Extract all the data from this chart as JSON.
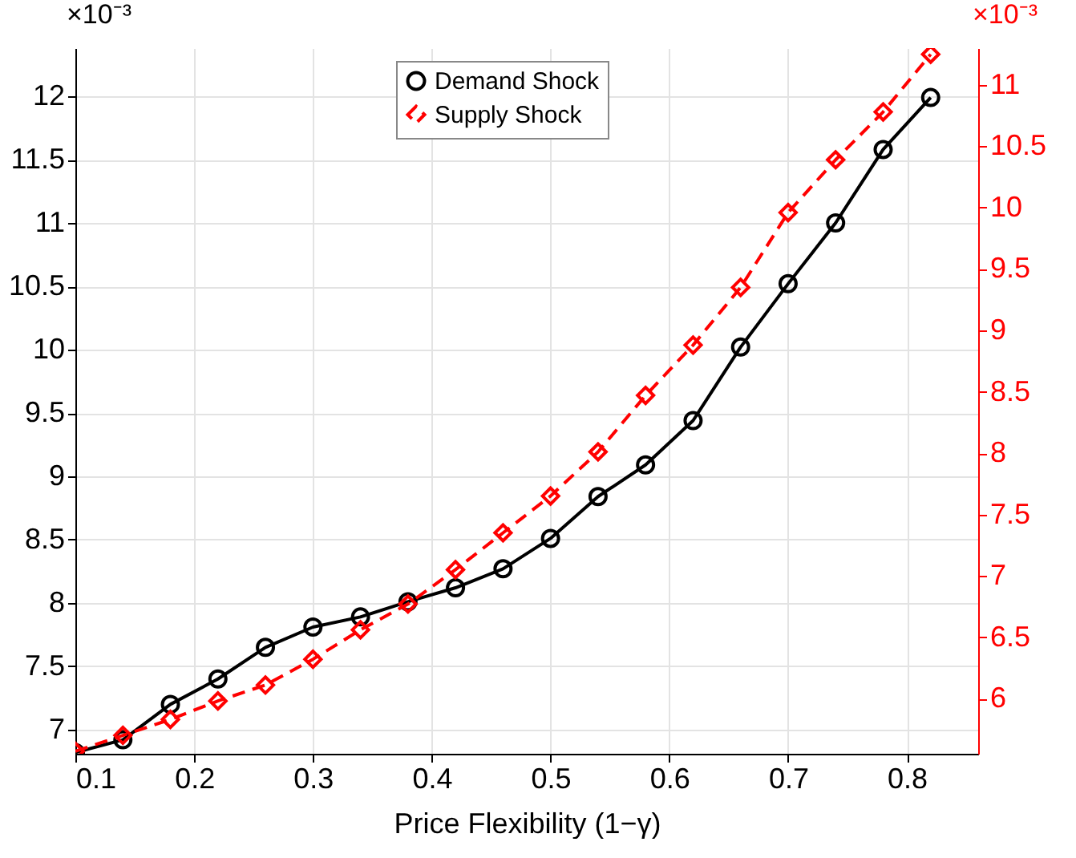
{
  "chart_data": {
    "type": "line",
    "xlabel": "Price Flexibility (1−γ)",
    "annotations": [
      "×10⁻³",
      "×10⁻³"
    ],
    "x": [
      0.1,
      0.14,
      0.18,
      0.22,
      0.26,
      0.3,
      0.34,
      0.38,
      0.42,
      0.46,
      0.5,
      0.54,
      0.58,
      0.62,
      0.66,
      0.7,
      0.74,
      0.78,
      0.82
    ],
    "series": [
      {
        "name": "Demand Shock",
        "color": "#000000",
        "marker": "circle",
        "line_style": "solid",
        "values": [
          6.82,
          6.92,
          7.2,
          7.4,
          7.65,
          7.81,
          7.89,
          8.01,
          8.12,
          8.27,
          8.51,
          8.84,
          9.09,
          9.44,
          10.02,
          10.52,
          11.0,
          11.58,
          11.99
        ]
      },
      {
        "name": "Supply Shock",
        "color": "#ff0000",
        "marker": "diamond",
        "line_style": "dashed",
        "axis": "y2",
        "values": [
          5.57,
          5.7,
          5.83,
          5.98,
          6.11,
          6.32,
          6.56,
          6.77,
          7.05,
          7.35,
          7.65,
          8.01,
          8.47,
          8.88,
          9.35,
          9.96,
          10.39,
          10.78,
          11.25
        ]
      }
    ],
    "xlim": [
      0.1,
      0.86
    ],
    "xticks": [
      0.1,
      0.2,
      0.3,
      0.4,
      0.5,
      0.6,
      0.7,
      0.8
    ],
    "ylim": [
      6.81,
      12.38
    ],
    "yticks": [
      7,
      7.5,
      8,
      8.5,
      9,
      9.5,
      10,
      10.5,
      11,
      11.5,
      12
    ],
    "y2lim": [
      5.55,
      11.3
    ],
    "y2ticks": [
      6,
      6.5,
      7,
      7.5,
      8,
      8.5,
      9,
      9.5,
      10,
      10.5,
      11
    ],
    "grid": true,
    "legend": "top"
  }
}
